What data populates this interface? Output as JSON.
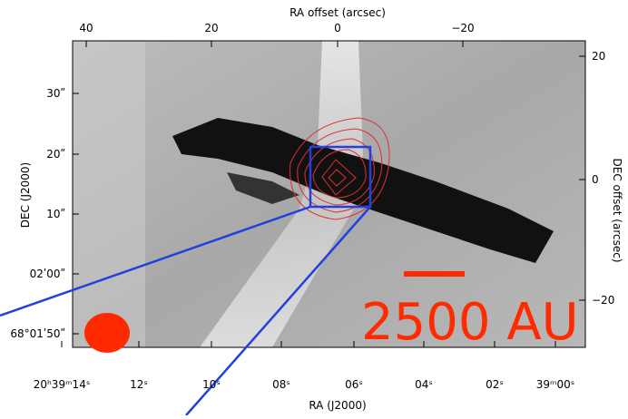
{
  "figure": {
    "top_axis": {
      "label": "RA offset (arcsec)",
      "ticks": [
        "40",
        "20",
        "0",
        "−20"
      ]
    },
    "right_axis": {
      "label": "DEC offset (arcsec)",
      "ticks": [
        "20",
        "0",
        "−20"
      ]
    },
    "left_axis": {
      "label": "DEC (J2000)",
      "ticks": [
        "30ʺ",
        "20ʺ",
        "10ʺ",
        "02ʹ00ʺ",
        "68°01ʹ50ʺ"
      ]
    },
    "bottom_axis": {
      "label": "RA (J2000)",
      "ticks": [
        "20ʰ39ᵐ14ˢ",
        "12ˢ",
        "10ˢ",
        "08ˢ",
        "06ˢ",
        "04ˢ",
        "02ˢ",
        "39ᵐ00ˢ"
      ]
    },
    "scale_bar_label": "2500 AU"
  }
}
